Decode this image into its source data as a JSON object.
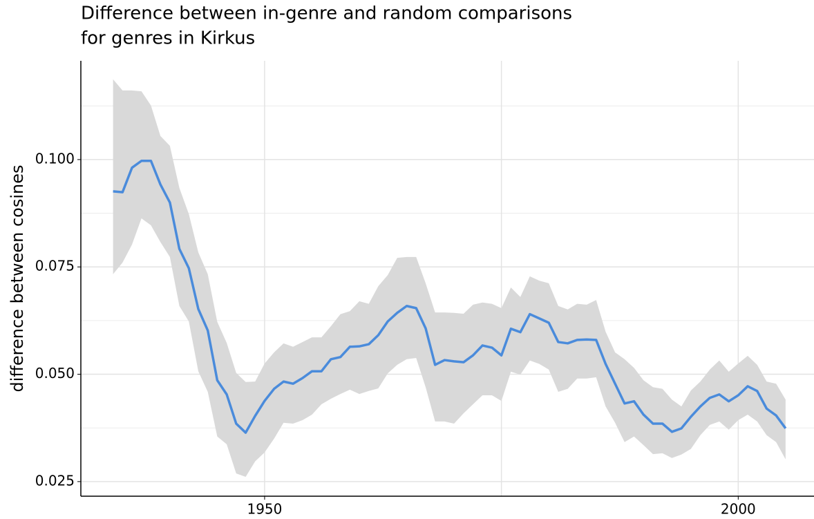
{
  "chart_data": {
    "type": "line",
    "title": [
      "Difference between in-genre and random comparisons",
      "for genres in Kirkus"
    ],
    "ylabel": "difference between cosines",
    "x": [
      1934,
      1935,
      1936,
      1937,
      1938,
      1939,
      1940,
      1941,
      1942,
      1943,
      1944,
      1945,
      1946,
      1947,
      1948,
      1949,
      1950,
      1951,
      1952,
      1953,
      1954,
      1955,
      1956,
      1957,
      1958,
      1959,
      1960,
      1961,
      1962,
      1963,
      1964,
      1965,
      1966,
      1967,
      1968,
      1969,
      1970,
      1971,
      1972,
      1973,
      1974,
      1975,
      1976,
      1977,
      1978,
      1979,
      1980,
      1981,
      1982,
      1983,
      1984,
      1985,
      1986,
      1987,
      1988,
      1989,
      1990,
      1991,
      1992,
      1993,
      1994,
      1995,
      1996,
      1997,
      1998,
      1999,
      2000,
      2001,
      2002,
      2003,
      2004,
      2005
    ],
    "series": [
      {
        "color": "#4a8bdb",
        "band_color": "#d9d9d9",
        "values": [
          0.0926,
          0.0924,
          0.0981,
          0.0997,
          0.0997,
          0.0942,
          0.09,
          0.0792,
          0.0747,
          0.0652,
          0.0602,
          0.0486,
          0.0453,
          0.0385,
          0.0364,
          0.0403,
          0.0438,
          0.0466,
          0.0483,
          0.0478,
          0.0491,
          0.0507,
          0.0507,
          0.0535,
          0.054,
          0.0564,
          0.0565,
          0.057,
          0.0591,
          0.0623,
          0.0643,
          0.0659,
          0.0654,
          0.0607,
          0.0522,
          0.0533,
          0.053,
          0.0528,
          0.0544,
          0.0567,
          0.0562,
          0.0544,
          0.0606,
          0.0598,
          0.064,
          0.063,
          0.062,
          0.0575,
          0.0572,
          0.058,
          0.0581,
          0.058,
          0.0524,
          0.0478,
          0.0432,
          0.0437,
          0.0406,
          0.0385,
          0.0385,
          0.0366,
          0.0374,
          0.0401,
          0.0425,
          0.0445,
          0.0453,
          0.0437,
          0.0451,
          0.0472,
          0.0461,
          0.042,
          0.0404,
          0.0374
        ],
        "upper": [
          0.1187,
          0.1161,
          0.1161,
          0.1159,
          0.1126,
          0.1055,
          0.1032,
          0.0934,
          0.0873,
          0.0784,
          0.0733,
          0.0622,
          0.0573,
          0.0503,
          0.0482,
          0.0483,
          0.0525,
          0.0551,
          0.0572,
          0.0564,
          0.0575,
          0.0586,
          0.0586,
          0.0612,
          0.064,
          0.0647,
          0.067,
          0.0664,
          0.0705,
          0.0731,
          0.0771,
          0.0773,
          0.0773,
          0.0712,
          0.0644,
          0.0644,
          0.0643,
          0.0641,
          0.0662,
          0.0667,
          0.0664,
          0.0654,
          0.0702,
          0.068,
          0.0728,
          0.0718,
          0.0712,
          0.0659,
          0.0651,
          0.0664,
          0.0662,
          0.0673,
          0.0599,
          0.0551,
          0.0535,
          0.0515,
          0.0486,
          0.047,
          0.0466,
          0.0441,
          0.0425,
          0.0462,
          0.0483,
          0.0511,
          0.0532,
          0.0506,
          0.0525,
          0.0543,
          0.0522,
          0.0483,
          0.0478,
          0.0441
        ],
        "lower": [
          0.0733,
          0.076,
          0.0802,
          0.0863,
          0.0847,
          0.0808,
          0.0773,
          0.0659,
          0.0623,
          0.0507,
          0.0459,
          0.0355,
          0.0337,
          0.0269,
          0.0261,
          0.0297,
          0.0318,
          0.035,
          0.0387,
          0.0385,
          0.0393,
          0.0406,
          0.043,
          0.0443,
          0.0454,
          0.0464,
          0.0454,
          0.0461,
          0.0467,
          0.0502,
          0.0522,
          0.0535,
          0.0538,
          0.047,
          0.039,
          0.039,
          0.0385,
          0.0409,
          0.043,
          0.0451,
          0.0451,
          0.0438,
          0.0506,
          0.0499,
          0.0532,
          0.0524,
          0.0511,
          0.0459,
          0.0466,
          0.049,
          0.049,
          0.0493,
          0.0425,
          0.0387,
          0.0342,
          0.0355,
          0.0335,
          0.0314,
          0.0316,
          0.0305,
          0.0313,
          0.0326,
          0.0358,
          0.0382,
          0.039,
          0.0371,
          0.0393,
          0.0406,
          0.039,
          0.0358,
          0.0342,
          0.0302
        ]
      }
    ],
    "xlim": [
      1930.6,
      2008.0
    ],
    "ylim": [
      0.0216,
      0.123
    ],
    "xticks": [
      1950,
      2000
    ],
    "xgrid_minor": [
      1975
    ],
    "yticks": [
      {
        "value": 0.1,
        "label": "0.100"
      },
      0.075,
      {
        "value": 0.05,
        "label": "0.050"
      },
      0.025
    ],
    "ygrid_minor": [
      0.0375,
      0.0625,
      0.0875,
      0.1125
    ],
    "grid": true
  }
}
